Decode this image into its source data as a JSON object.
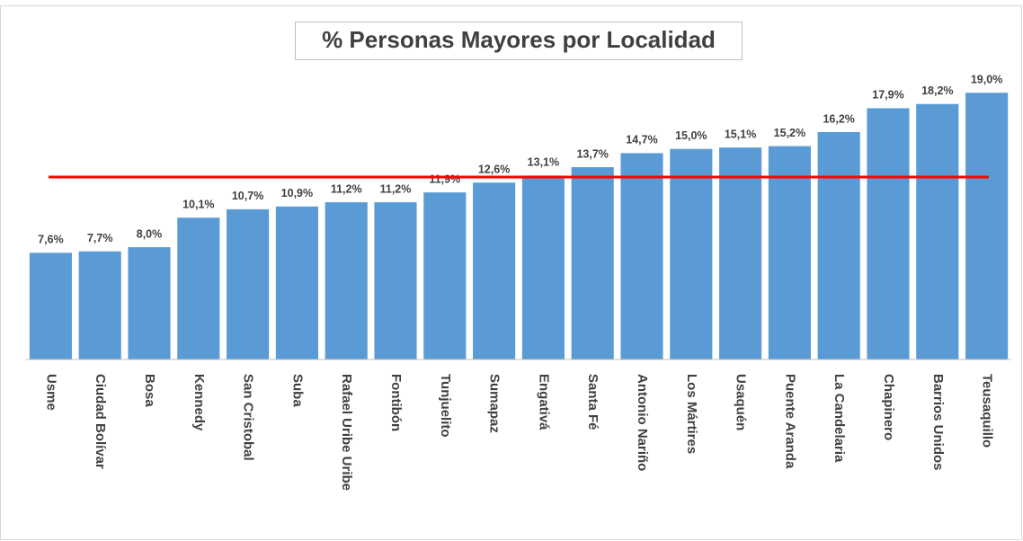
{
  "chart_data": {
    "type": "bar",
    "title": "% Personas Mayores por Localidad",
    "categories": [
      "Usme",
      "Ciudad Bolívar",
      "Bosa",
      "Kennedy",
      "San Cristobal",
      "Suba",
      "Rafael Uribe Uribe",
      "Fontibón",
      "Tunjuelito",
      "Sumapaz",
      "Engativá",
      "Santa Fé",
      "Antonio Nariño",
      "Los Mártires",
      "Usaquén",
      "Puente Aranda",
      "La Candelaria",
      "Chapinero",
      "Barrios Unidos",
      "Teusaquillo"
    ],
    "values": [
      7.6,
      7.7,
      8.0,
      10.1,
      10.7,
      10.9,
      11.2,
      11.2,
      11.9,
      12.6,
      13.1,
      13.7,
      14.7,
      15.0,
      15.1,
      15.2,
      16.2,
      17.9,
      18.2,
      19.0
    ],
    "value_labels": [
      "7,6%",
      "7,7%",
      "8,0%",
      "10,1%",
      "10,7%",
      "10,9%",
      "11,2%",
      "11,2%",
      "11,9%",
      "12,6%",
      "13,1%",
      "13,7%",
      "14,7%",
      "15,0%",
      "15,1%",
      "15,2%",
      "16,2%",
      "17,9%",
      "18,2%",
      "19,0%"
    ],
    "color": "#5b9bd5",
    "ylim": [
      0,
      21
    ],
    "reference_line": {
      "value": 13,
      "color": "#ff0000"
    }
  }
}
